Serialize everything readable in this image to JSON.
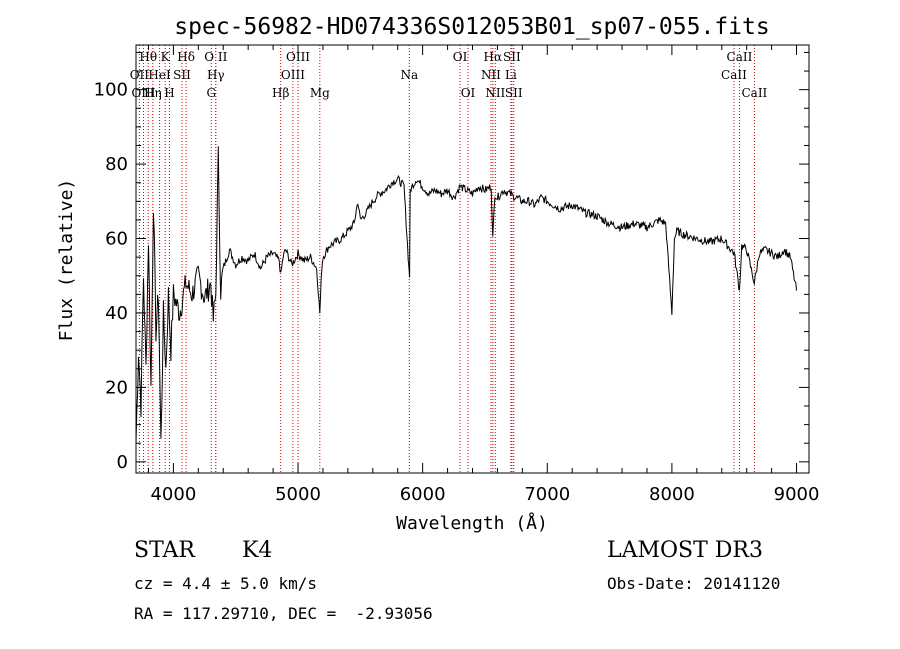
{
  "chart_data": {
    "type": "line",
    "title": "spec-56982-HD074336S012053B01_sp07-055.fits",
    "xlabel": "Wavelength (Å)",
    "ylabel": "Flux (relative)",
    "xlim": [
      3700,
      9100
    ],
    "ylim": [
      -3,
      112
    ],
    "x_ticks": [
      4000,
      5000,
      6000,
      7000,
      8000,
      9000
    ],
    "y_ticks": [
      0,
      20,
      40,
      60,
      80,
      100
    ],
    "series": [
      {
        "name": "flux",
        "x": [
          3700,
          3720,
          3740,
          3760,
          3780,
          3800,
          3820,
          3840,
          3860,
          3880,
          3900,
          3920,
          3940,
          3960,
          3980,
          4000,
          4050,
          4100,
          4150,
          4200,
          4250,
          4300,
          4320,
          4340,
          4360,
          4380,
          4400,
          4450,
          4500,
          4550,
          4600,
          4650,
          4700,
          4750,
          4800,
          4850,
          4861,
          4880,
          4900,
          4950,
          5000,
          5050,
          5100,
          5150,
          5175,
          5190,
          5200,
          5250,
          5300,
          5350,
          5400,
          5450,
          5480,
          5500,
          5550,
          5600,
          5650,
          5700,
          5750,
          5800,
          5850,
          5890,
          5895,
          5900,
          5950,
          6000,
          6050,
          6100,
          6150,
          6200,
          6250,
          6300,
          6350,
          6400,
          6450,
          6500,
          6550,
          6563,
          6580,
          6600,
          6650,
          6700,
          6750,
          6800,
          6850,
          6900,
          6950,
          7000,
          7100,
          7200,
          7300,
          7400,
          7500,
          7600,
          7700,
          7800,
          7900,
          7950,
          8000,
          8020,
          8040,
          8100,
          8200,
          8300,
          8400,
          8450,
          8500,
          8542,
          8560,
          8600,
          8662,
          8700,
          8750,
          8800,
          8850,
          8900,
          8950,
          9000
        ],
        "values": [
          5,
          30,
          15,
          50,
          25,
          60,
          20,
          70,
          35,
          45,
          5,
          40,
          25,
          45,
          30,
          45,
          40,
          48,
          45,
          50,
          44,
          48,
          38,
          45,
          82,
          46,
          52,
          57,
          53,
          55,
          54,
          56,
          52,
          55,
          56,
          54,
          50,
          55,
          57,
          53,
          56,
          54,
          55,
          52,
          40,
          52,
          55,
          58,
          59,
          60,
          62,
          64,
          70,
          65,
          67,
          70,
          72,
          73,
          75,
          76,
          74,
          52,
          50,
          73,
          76,
          74,
          72,
          73,
          72,
          73,
          71,
          74,
          73,
          72,
          74,
          73,
          74,
          60,
          72,
          71,
          73,
          72,
          71,
          70,
          70,
          69,
          71,
          70,
          68,
          69,
          67,
          66,
          64,
          63,
          64,
          63,
          65,
          64,
          40,
          60,
          62,
          61,
          60,
          59,
          60,
          58,
          56,
          46,
          58,
          57,
          48,
          56,
          57,
          56,
          55,
          57,
          55,
          46
        ]
      }
    ],
    "annotations": [
      {
        "label": "Hθ",
        "x": 3798,
        "row": 0
      },
      {
        "label": "OII",
        "x": 3727,
        "row": 1
      },
      {
        "label": "Hη",
        "x": 3835,
        "row": 2
      },
      {
        "label": "OIII",
        "x": 3760,
        "row": 2
      },
      {
        "label": "K",
        "x": 3934,
        "row": 0
      },
      {
        "label": "H",
        "x": 3969,
        "row": 2
      },
      {
        "label": "HeI",
        "x": 3889,
        "row": 1
      },
      {
        "label": "SII",
        "x": 4069,
        "row": 1
      },
      {
        "label": "Hδ",
        "x": 4102,
        "row": 0
      },
      {
        "label": "O II",
        "x": 4340,
        "row": 0
      },
      {
        "label": "Hγ",
        "x": 4340,
        "row": 1
      },
      {
        "label": "G",
        "x": 4304,
        "row": 2
      },
      {
        "label": "OIII",
        "x": 5000,
        "row": 0
      },
      {
        "label": "OIII",
        "x": 4959,
        "row": 1
      },
      {
        "label": "Hβ",
        "x": 4861,
        "row": 2
      },
      {
        "label": "Mg",
        "x": 5175,
        "row": 2
      },
      {
        "label": "Na",
        "x": 5893,
        "row": 1
      },
      {
        "label": "OI",
        "x": 6300,
        "row": 0
      },
      {
        "label": "OI",
        "x": 6364,
        "row": 2
      },
      {
        "label": "Hα",
        "x": 6563,
        "row": 0
      },
      {
        "label": "NII",
        "x": 6548,
        "row": 1
      },
      {
        "label": "NII",
        "x": 6583,
        "row": 2
      },
      {
        "label": "SII",
        "x": 6716,
        "row": 0
      },
      {
        "label": "Li",
        "x": 6708,
        "row": 1
      },
      {
        "label": "SII",
        "x": 6731,
        "row": 2
      },
      {
        "label": "CaII",
        "x": 8542,
        "row": 0
      },
      {
        "label": "CaII",
        "x": 8498,
        "row": 1
      },
      {
        "label": "CaII",
        "x": 8662,
        "row": 2
      }
    ],
    "line_color": "#000000",
    "marker_color": "#cc0000"
  },
  "info": {
    "object_class": "STAR",
    "subclass": "K4",
    "survey": "LAMOST DR3",
    "cz": "cz = 4.4 ± 5.0 km/s",
    "obs_date": "Obs-Date: 20141120",
    "coords": "RA = 117.29710, DEC =  -2.93056"
  }
}
